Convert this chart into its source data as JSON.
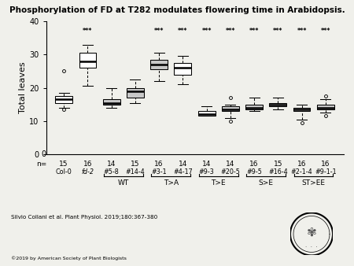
{
  "title": "Phosphorylation of FD at T282 modulates flowering time in Arabidopsis.",
  "ylabel": "Total leaves",
  "ylim": [
    0,
    40
  ],
  "yticks": [
    0,
    10,
    20,
    30,
    40
  ],
  "boxes": [
    {
      "label": "Col-0",
      "n": 15,
      "whislo": 14.0,
      "q1": 15.5,
      "med": 16.5,
      "q3": 17.5,
      "whishi": 18.5,
      "fliers": [
        13.5,
        25.0
      ],
      "color": "white",
      "sig": false
    },
    {
      "label": "fd-2",
      "n": 16,
      "whislo": 20.5,
      "q1": 26.0,
      "med": 28.0,
      "q3": 30.5,
      "whishi": 33.0,
      "fliers": [],
      "color": "white",
      "sig": true
    },
    {
      "label": "#5-8",
      "n": 14,
      "whislo": 14.0,
      "q1": 15.0,
      "med": 15.5,
      "q3": 16.5,
      "whishi": 20.0,
      "fliers": [],
      "color": "#c8c8c8",
      "sig": false
    },
    {
      "label": "#14-4",
      "n": 15,
      "whislo": 15.5,
      "q1": 17.0,
      "med": 19.0,
      "q3": 20.0,
      "whishi": 22.5,
      "fliers": [],
      "color": "#c8c8c8",
      "sig": false
    },
    {
      "label": "#3-1",
      "n": 16,
      "whislo": 22.0,
      "q1": 25.5,
      "med": 27.0,
      "q3": 28.5,
      "whishi": 30.5,
      "fliers": [],
      "color": "#c8c8c8",
      "sig": true
    },
    {
      "label": "#4-17",
      "n": 14,
      "whislo": 21.0,
      "q1": 24.0,
      "med": 26.0,
      "q3": 27.5,
      "whishi": 29.5,
      "fliers": [],
      "color": "white",
      "sig": true
    },
    {
      "label": "#9-3",
      "n": 14,
      "whislo": 11.5,
      "q1": 11.5,
      "med": 12.0,
      "q3": 13.0,
      "whishi": 14.5,
      "fliers": [],
      "color": "white",
      "sig": true
    },
    {
      "label": "#20-5",
      "n": 14,
      "whislo": 11.0,
      "q1": 13.0,
      "med": 13.5,
      "q3": 14.5,
      "whishi": 15.0,
      "fliers": [
        10.0,
        17.0
      ],
      "color": "#c8c8c8",
      "sig": true
    },
    {
      "label": "#9-5",
      "n": 16,
      "whislo": 13.0,
      "q1": 13.5,
      "med": 14.0,
      "q3": 15.0,
      "whishi": 17.0,
      "fliers": [],
      "color": "#c8c8c8",
      "sig": true
    },
    {
      "label": "#16-4",
      "n": 15,
      "whislo": 13.5,
      "q1": 14.5,
      "med": 15.0,
      "q3": 15.5,
      "whishi": 17.0,
      "fliers": [],
      "color": "white",
      "sig": true
    },
    {
      "label": "#2-1-4",
      "n": 16,
      "whislo": 10.5,
      "q1": 13.0,
      "med": 13.5,
      "q3": 14.0,
      "whishi": 15.0,
      "fliers": [
        9.5
      ],
      "color": "white",
      "sig": true
    },
    {
      "label": "#9-1-1",
      "n": 16,
      "whislo": 12.5,
      "q1": 13.5,
      "med": 14.0,
      "q3": 15.0,
      "whishi": 16.5,
      "fliers": [
        11.5,
        17.5
      ],
      "color": "#c8c8c8",
      "sig": true
    }
  ],
  "group_brackets": [
    {
      "label": "WT",
      "start": 2,
      "end": 3
    },
    {
      "label": "T>A",
      "start": 4,
      "end": 5
    },
    {
      "label": "T>E",
      "start": 6,
      "end": 7
    },
    {
      "label": "S>E",
      "start": 8,
      "end": 9
    },
    {
      "label": "ST>EE",
      "start": 10,
      "end": 11
    }
  ],
  "author_text": "Silvio Collani et al. Plant Physiol. 2019;180:367-380",
  "copyright_text": "©2019 by American Society of Plant Biologists",
  "bg_color": "#f0f0eb"
}
